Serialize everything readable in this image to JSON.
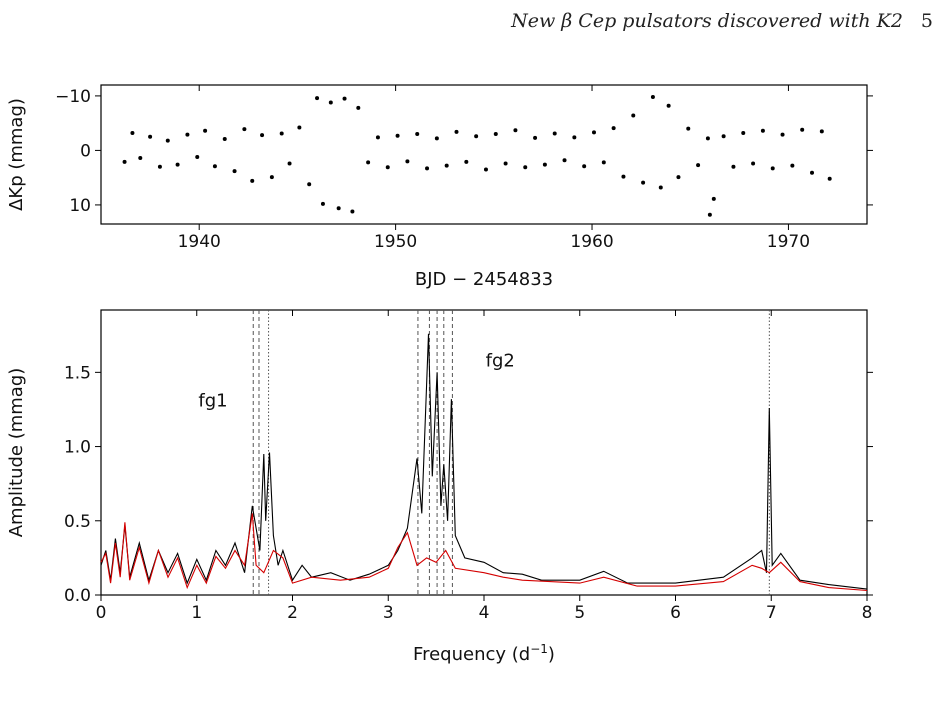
{
  "header": {
    "running_title": "New β Cep pulsators discovered with K2",
    "page_number": "5"
  },
  "chart_data": [
    {
      "type": "scatter",
      "title": "",
      "xlabel": "BJD − 2454833",
      "ylabel": "ΔKp (mmag)",
      "xlim": [
        1935,
        1974
      ],
      "ylim": [
        13.5,
        -12
      ],
      "y_inverted": true,
      "xticks": [
        1940,
        1950,
        1960,
        1970
      ],
      "xtick_labels": [
        "1940",
        "1950",
        "1960",
        "1970"
      ],
      "yticks": [
        -10,
        0,
        10
      ],
      "ytick_labels": [
        "−10",
        "0",
        "10"
      ],
      "color": "#000000",
      "series": [
        {
          "points": [
            [
              1936.2,
              2.1
            ],
            [
              1936.6,
              -3.2
            ],
            [
              1937.0,
              1.4
            ],
            [
              1937.5,
              -2.5
            ],
            [
              1938.0,
              3.0
            ],
            [
              1938.4,
              -1.8
            ],
            [
              1938.9,
              2.6
            ],
            [
              1939.4,
              -2.9
            ],
            [
              1939.9,
              1.2
            ],
            [
              1940.3,
              -3.6
            ],
            [
              1940.8,
              2.9
            ],
            [
              1941.3,
              -2.1
            ],
            [
              1941.8,
              3.8
            ],
            [
              1942.3,
              -3.9
            ],
            [
              1942.7,
              5.6
            ],
            [
              1943.2,
              -2.8
            ],
            [
              1943.7,
              4.9
            ],
            [
              1944.2,
              -3.1
            ],
            [
              1944.6,
              2.4
            ],
            [
              1945.1,
              -4.2
            ],
            [
              1945.6,
              6.2
            ],
            [
              1946.0,
              -9.6
            ],
            [
              1946.3,
              9.8
            ],
            [
              1946.7,
              -8.8
            ],
            [
              1947.1,
              10.6
            ],
            [
              1947.4,
              -9.5
            ],
            [
              1947.8,
              11.2
            ],
            [
              1948.1,
              -7.8
            ],
            [
              1948.6,
              2.2
            ],
            [
              1949.1,
              -2.4
            ],
            [
              1949.6,
              3.1
            ],
            [
              1950.1,
              -2.7
            ],
            [
              1950.6,
              2.0
            ],
            [
              1951.1,
              -3.0
            ],
            [
              1951.6,
              3.3
            ],
            [
              1952.1,
              -2.2
            ],
            [
              1952.6,
              2.8
            ],
            [
              1953.1,
              -3.4
            ],
            [
              1953.6,
              2.1
            ],
            [
              1954.1,
              -2.6
            ],
            [
              1954.6,
              3.5
            ],
            [
              1955.1,
              -3.0
            ],
            [
              1955.6,
              2.4
            ],
            [
              1956.1,
              -3.7
            ],
            [
              1956.6,
              3.1
            ],
            [
              1957.1,
              -2.3
            ],
            [
              1957.6,
              2.6
            ],
            [
              1958.1,
              -3.1
            ],
            [
              1958.6,
              1.8
            ],
            [
              1959.1,
              -2.4
            ],
            [
              1959.6,
              2.9
            ],
            [
              1960.1,
              -3.3
            ],
            [
              1960.6,
              2.2
            ],
            [
              1961.1,
              -4.1
            ],
            [
              1961.6,
              4.8
            ],
            [
              1962.1,
              -6.4
            ],
            [
              1962.6,
              5.9
            ],
            [
              1963.1,
              -9.8
            ],
            [
              1963.5,
              6.8
            ],
            [
              1963.9,
              -8.2
            ],
            [
              1964.4,
              4.9
            ],
            [
              1964.9,
              -4.0
            ],
            [
              1965.4,
              2.7
            ],
            [
              1965.9,
              -2.2
            ],
            [
              1966.0,
              11.8
            ],
            [
              1966.2,
              8.9
            ],
            [
              1966.7,
              -2.6
            ],
            [
              1967.2,
              3.0
            ],
            [
              1967.7,
              -3.2
            ],
            [
              1968.2,
              2.4
            ],
            [
              1968.7,
              -3.6
            ],
            [
              1969.2,
              3.3
            ],
            [
              1969.7,
              -2.9
            ],
            [
              1970.2,
              2.8
            ],
            [
              1970.7,
              -3.8
            ],
            [
              1971.2,
              4.1
            ],
            [
              1971.7,
              -3.5
            ],
            [
              1972.1,
              5.2
            ]
          ]
        }
      ]
    },
    {
      "type": "line",
      "title": "",
      "xlabel": "Frequency (d",
      "xlabel_superscript": "−1",
      "xlabel_suffix": ")",
      "ylabel": "Amplitude (mmag)",
      "xlim": [
        0,
        8
      ],
      "ylim": [
        0,
        1.92
      ],
      "xticks": [
        0,
        1,
        2,
        3,
        4,
        5,
        6,
        7,
        8
      ],
      "xtick_labels": [
        "0",
        "1",
        "2",
        "3",
        "4",
        "5",
        "6",
        "7",
        "8"
      ],
      "yticks": [
        0.0,
        0.5,
        1.0,
        1.5
      ],
      "ytick_labels": [
        "0.0",
        "0.5",
        "1.0",
        "1.5"
      ],
      "annotations": [
        {
          "text": "fg1",
          "x": 1.17,
          "y": 1.27
        },
        {
          "text": "fg2",
          "x": 4.17,
          "y": 1.54
        }
      ],
      "dashed_lines": [
        1.59,
        1.65,
        3.31,
        3.43,
        3.51,
        3.58,
        3.67
      ],
      "dotted_lines": [
        1.75,
        6.98
      ],
      "series": [
        {
          "color": "#000000",
          "points": [
            [
              0.0,
              0.2
            ],
            [
              0.05,
              0.3
            ],
            [
              0.1,
              0.1
            ],
            [
              0.15,
              0.38
            ],
            [
              0.2,
              0.15
            ],
            [
              0.25,
              0.47
            ],
            [
              0.3,
              0.12
            ],
            [
              0.4,
              0.35
            ],
            [
              0.5,
              0.1
            ],
            [
              0.6,
              0.3
            ],
            [
              0.7,
              0.15
            ],
            [
              0.8,
              0.28
            ],
            [
              0.9,
              0.08
            ],
            [
              1.0,
              0.24
            ],
            [
              1.1,
              0.1
            ],
            [
              1.2,
              0.3
            ],
            [
              1.3,
              0.2
            ],
            [
              1.4,
              0.35
            ],
            [
              1.5,
              0.15
            ],
            [
              1.58,
              0.6
            ],
            [
              1.62,
              0.45
            ],
            [
              1.66,
              0.3
            ],
            [
              1.7,
              0.95
            ],
            [
              1.72,
              0.5
            ],
            [
              1.76,
              0.96
            ],
            [
              1.8,
              0.4
            ],
            [
              1.85,
              0.2
            ],
            [
              1.9,
              0.3
            ],
            [
              2.0,
              0.1
            ],
            [
              2.1,
              0.2
            ],
            [
              2.2,
              0.12
            ],
            [
              2.4,
              0.15
            ],
            [
              2.6,
              0.1
            ],
            [
              2.8,
              0.14
            ],
            [
              3.0,
              0.2
            ],
            [
              3.1,
              0.3
            ],
            [
              3.2,
              0.45
            ],
            [
              3.3,
              0.92
            ],
            [
              3.35,
              0.55
            ],
            [
              3.42,
              1.76
            ],
            [
              3.46,
              0.8
            ],
            [
              3.51,
              1.5
            ],
            [
              3.55,
              0.6
            ],
            [
              3.58,
              0.88
            ],
            [
              3.62,
              0.5
            ],
            [
              3.66,
              1.32
            ],
            [
              3.7,
              0.4
            ],
            [
              3.8,
              0.25
            ],
            [
              4.0,
              0.22
            ],
            [
              4.2,
              0.15
            ],
            [
              4.4,
              0.14
            ],
            [
              4.6,
              0.1
            ],
            [
              5.0,
              0.1
            ],
            [
              5.25,
              0.16
            ],
            [
              5.5,
              0.08
            ],
            [
              6.0,
              0.08
            ],
            [
              6.5,
              0.12
            ],
            [
              6.8,
              0.25
            ],
            [
              6.9,
              0.3
            ],
            [
              6.95,
              0.15
            ],
            [
              6.98,
              1.26
            ],
            [
              7.01,
              0.2
            ],
            [
              7.1,
              0.28
            ],
            [
              7.3,
              0.1
            ],
            [
              7.6,
              0.07
            ],
            [
              8.0,
              0.04
            ]
          ]
        },
        {
          "color": "#d40000",
          "points": [
            [
              0.0,
              0.22
            ],
            [
              0.05,
              0.28
            ],
            [
              0.1,
              0.08
            ],
            [
              0.15,
              0.35
            ],
            [
              0.2,
              0.12
            ],
            [
              0.25,
              0.49
            ],
            [
              0.3,
              0.1
            ],
            [
              0.4,
              0.32
            ],
            [
              0.5,
              0.08
            ],
            [
              0.6,
              0.3
            ],
            [
              0.7,
              0.12
            ],
            [
              0.8,
              0.25
            ],
            [
              0.9,
              0.05
            ],
            [
              1.0,
              0.2
            ],
            [
              1.1,
              0.08
            ],
            [
              1.2,
              0.26
            ],
            [
              1.3,
              0.18
            ],
            [
              1.4,
              0.3
            ],
            [
              1.5,
              0.2
            ],
            [
              1.58,
              0.55
            ],
            [
              1.62,
              0.2
            ],
            [
              1.7,
              0.15
            ],
            [
              1.8,
              0.3
            ],
            [
              1.9,
              0.25
            ],
            [
              2.0,
              0.08
            ],
            [
              2.2,
              0.12
            ],
            [
              2.5,
              0.1
            ],
            [
              2.8,
              0.12
            ],
            [
              3.0,
              0.18
            ],
            [
              3.1,
              0.32
            ],
            [
              3.2,
              0.42
            ],
            [
              3.3,
              0.2
            ],
            [
              3.4,
              0.25
            ],
            [
              3.5,
              0.22
            ],
            [
              3.6,
              0.3
            ],
            [
              3.7,
              0.18
            ],
            [
              4.0,
              0.15
            ],
            [
              4.2,
              0.12
            ],
            [
              4.4,
              0.1
            ],
            [
              5.0,
              0.08
            ],
            [
              5.25,
              0.12
            ],
            [
              5.6,
              0.06
            ],
            [
              6.0,
              0.06
            ],
            [
              6.5,
              0.09
            ],
            [
              6.8,
              0.2
            ],
            [
              6.9,
              0.18
            ],
            [
              6.98,
              0.15
            ],
            [
              7.1,
              0.22
            ],
            [
              7.3,
              0.09
            ],
            [
              7.6,
              0.05
            ],
            [
              8.0,
              0.03
            ]
          ]
        }
      ]
    }
  ]
}
